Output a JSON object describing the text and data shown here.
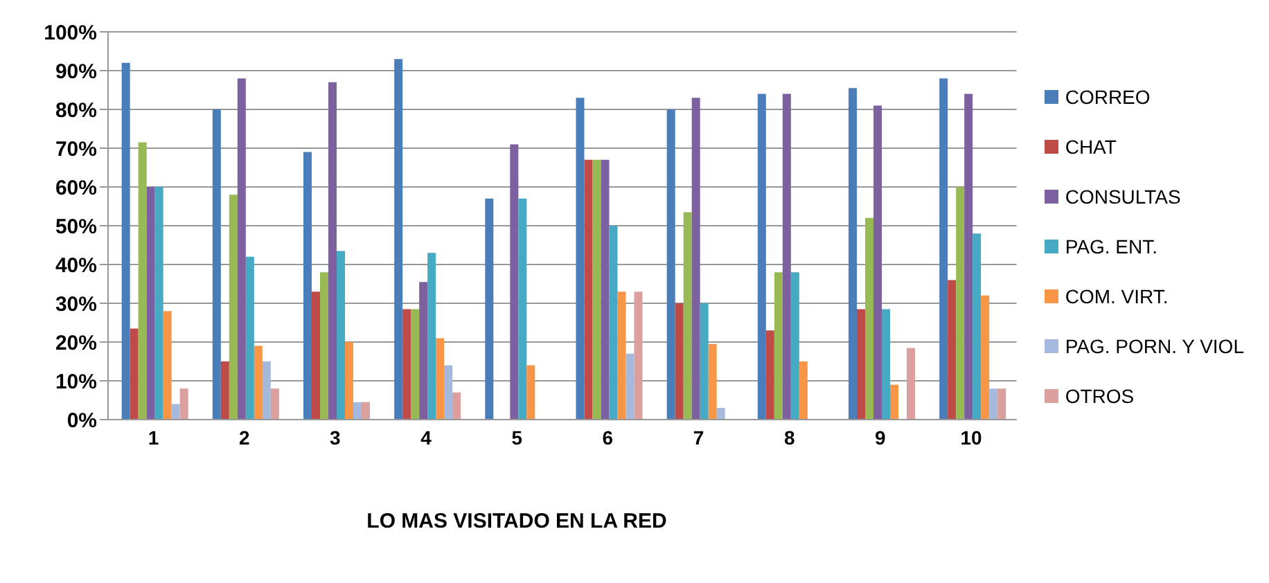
{
  "chart_data": {
    "type": "bar",
    "xlabel": "LO MAS VISITADO EN LA RED",
    "categories": [
      "1",
      "2",
      "3",
      "4",
      "5",
      "6",
      "7",
      "8",
      "9",
      "10"
    ],
    "series": [
      {
        "name": "CORREO",
        "color": "#4a7ebb",
        "values": [
          92,
          80,
          69,
          93,
          57,
          83,
          80,
          84,
          85.5,
          88
        ]
      },
      {
        "name": "CHAT",
        "color": "#be4b48",
        "values": [
          23.5,
          15,
          33,
          28.5,
          0,
          67,
          30,
          23,
          28.5,
          36
        ]
      },
      {
        "color": "#98b954",
        "values": [
          71.5,
          58,
          38,
          28.5,
          0,
          67,
          53.5,
          38,
          52,
          60
        ]
      },
      {
        "name": "CONSULTAS",
        "color": "#7d60a0",
        "values": [
          60,
          88,
          87,
          35.5,
          71,
          67,
          83,
          84,
          81,
          84
        ]
      },
      {
        "name": "PAG. ENT.",
        "color": "#46aac5",
        "values": [
          60,
          42,
          43.5,
          43,
          57,
          50,
          30,
          38,
          28.5,
          48
        ]
      },
      {
        "name": "COM. VIRT.",
        "color": "#f79646",
        "values": [
          28,
          19,
          20,
          21,
          14,
          33,
          19.5,
          15,
          9,
          32
        ]
      },
      {
        "name": "PAG. PORN. Y VIOL",
        "color": "#a5b9dc",
        "values": [
          4,
          15,
          4.5,
          14,
          0,
          17,
          3,
          0,
          0,
          8
        ]
      },
      {
        "name": "OTROS",
        "color": "#dba09e",
        "values": [
          8,
          8,
          4.5,
          7,
          0,
          33,
          0,
          0,
          18.5,
          8
        ]
      }
    ],
    "ylim": [
      0,
      100
    ],
    "yticks": [
      {
        "value": 0,
        "label": "0%"
      },
      {
        "value": 10,
        "label": "10%"
      },
      {
        "value": 20,
        "label": "20%"
      },
      {
        "value": 30,
        "label": "30%"
      },
      {
        "value": 40,
        "label": "40%"
      },
      {
        "value": 50,
        "label": "50%"
      },
      {
        "value": 60,
        "label": "60%"
      },
      {
        "value": 70,
        "label": "70%"
      },
      {
        "value": 80,
        "label": "80%"
      },
      {
        "value": 90,
        "label": "90%"
      },
      {
        "value": 100,
        "label": "100%"
      }
    ],
    "grid": "y",
    "legend": "right"
  }
}
